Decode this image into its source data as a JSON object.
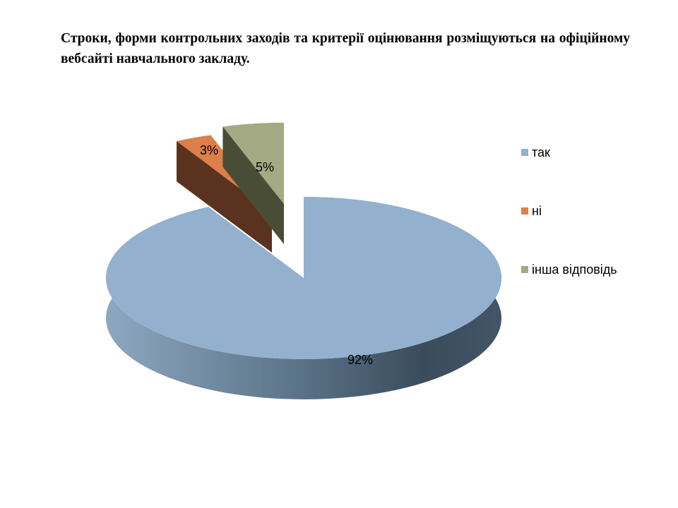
{
  "title": "Строки, форми контрольних заходів та критерії оцінювання розміщуються на офіційному вебсайті навчального закладу.",
  "chart_data": {
    "type": "pie",
    "style": "3d-exploded",
    "categories": [
      "так",
      "ні",
      "інша відповідь"
    ],
    "values": [
      92,
      3,
      5
    ],
    "labels": [
      "92%",
      "3%",
      "5%"
    ],
    "colors": [
      "#93b1cf",
      "#dd7f4b",
      "#a4ab84"
    ],
    "legend": "right"
  }
}
